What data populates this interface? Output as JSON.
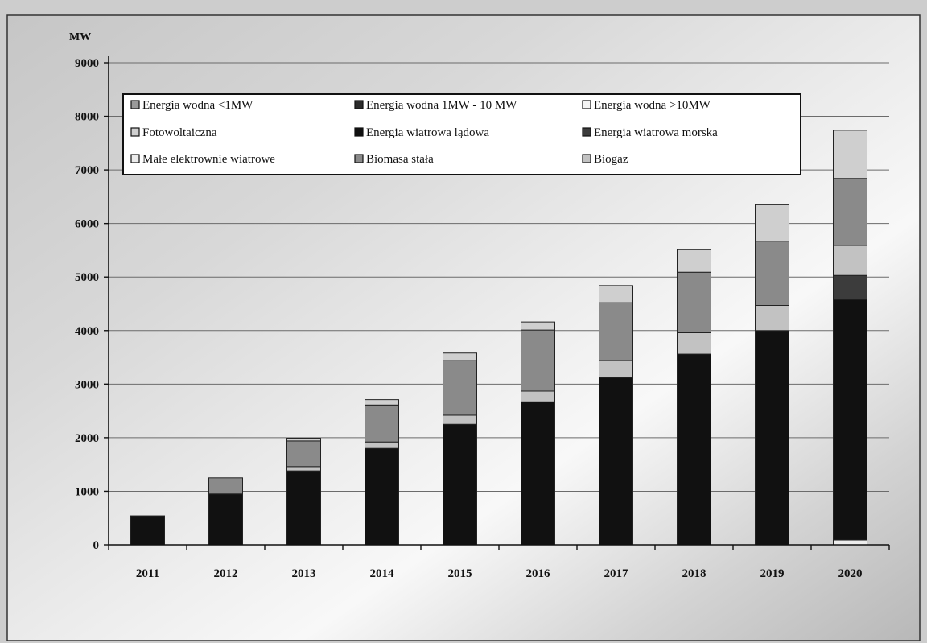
{
  "chart_data": {
    "type": "bar",
    "stacked": true,
    "title": "",
    "xlabel": "",
    "ylabel": "MW",
    "ylim": [
      0,
      9000
    ],
    "yticks": [
      0,
      1000,
      2000,
      3000,
      4000,
      5000,
      6000,
      7000,
      8000,
      9000
    ],
    "grid": true,
    "legend_position": "top-left",
    "categories": [
      "2011",
      "2012",
      "2013",
      "2014",
      "2015",
      "2016",
      "2017",
      "2018",
      "2019",
      "2020"
    ],
    "series": [
      {
        "name": "Energia wodna <1MW",
        "color": "#9a9a9a",
        "values": [
          0,
          0,
          0,
          0,
          0,
          0,
          0,
          0,
          0,
          0
        ]
      },
      {
        "name": "Energia wodna 1MW - 10 MW",
        "color": "#2b2b2b",
        "values": [
          0,
          0,
          0,
          0,
          0,
          0,
          0,
          0,
          0,
          0
        ]
      },
      {
        "name": "Energia wodna >10MW",
        "color": "#f4f4f4",
        "values": [
          0,
          0,
          0,
          0,
          0,
          0,
          0,
          0,
          0,
          0
        ]
      },
      {
        "name": "Fotowoltaiczna",
        "color": "#cfcfcf",
        "values": [
          0,
          0,
          50,
          100,
          140,
          150,
          320,
          420,
          680,
          900
        ]
      },
      {
        "name": "Energia wiatrowa lądowa",
        "color": "#111111",
        "values": [
          540,
          950,
          1380,
          1800,
          2250,
          2670,
          3120,
          3560,
          4000,
          4490
        ]
      },
      {
        "name": "Energia wiatrowa morska",
        "color": "#3c3c3c",
        "values": [
          0,
          0,
          0,
          0,
          0,
          0,
          0,
          0,
          0,
          450
        ]
      },
      {
        "name": "Małe elektrownie wiatrowe",
        "color": "#ececec",
        "values": [
          0,
          0,
          0,
          0,
          0,
          0,
          0,
          0,
          0,
          90
        ]
      },
      {
        "name": "Biomasa stała",
        "color": "#8a8a8a",
        "values": [
          0,
          300,
          480,
          690,
          1020,
          1140,
          1080,
          1130,
          1200,
          1250
        ]
      },
      {
        "name": "Biogaz",
        "color": "#c2c2c2",
        "values": [
          0,
          0,
          80,
          120,
          170,
          200,
          320,
          400,
          470,
          560
        ]
      }
    ]
  }
}
